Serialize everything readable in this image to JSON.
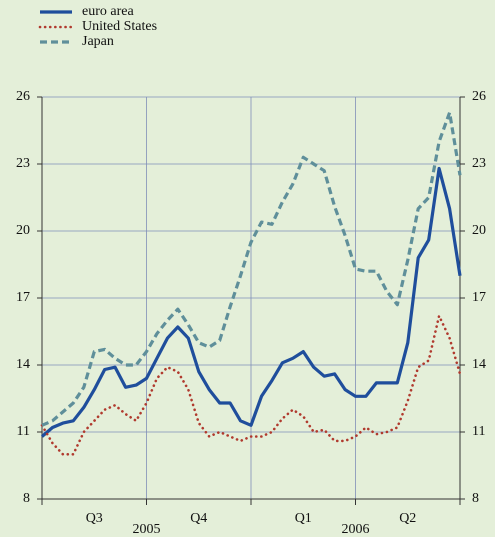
{
  "chart_data": {
    "type": "line",
    "x": [
      0,
      0.1,
      0.2,
      0.3,
      0.4,
      0.5,
      0.6,
      0.7,
      0.8,
      0.9,
      1,
      1.1,
      1.2,
      1.3,
      1.4,
      1.5,
      1.6,
      1.7,
      1.8,
      1.9,
      2,
      2.1,
      2.2,
      2.3,
      2.4,
      2.5,
      2.6,
      2.7,
      2.8,
      2.9,
      3,
      3.1,
      3.2,
      3.3,
      3.4,
      3.5,
      3.6,
      3.7,
      3.8,
      3.9,
      4
    ],
    "series": [
      {
        "name": "euro area",
        "color": "#1f4e9c",
        "style": "solid",
        "values": [
          10.8,
          11.2,
          11.4,
          11.5,
          12.1,
          12.9,
          13.8,
          13.9,
          13.0,
          13.1,
          13.4,
          14.3,
          15.2,
          15.7,
          15.2,
          13.7,
          12.9,
          12.3,
          12.3,
          11.5,
          11.3,
          12.6,
          13.3,
          14.1,
          14.3,
          14.6,
          13.9,
          13.5,
          13.6,
          12.9,
          12.6,
          12.6,
          13.2,
          13.2,
          13.2,
          15.0,
          18.8,
          19.6,
          22.8,
          21.0,
          18.0
        ]
      },
      {
        "name": "United States",
        "color": "#b03a2e",
        "style": "dotted",
        "values": [
          11.3,
          10.5,
          10.0,
          10.0,
          11.0,
          11.5,
          12.0,
          12.2,
          11.8,
          11.5,
          12.3,
          13.4,
          13.9,
          13.7,
          12.9,
          11.4,
          10.8,
          11.0,
          10.8,
          10.6,
          10.8,
          10.8,
          11.0,
          11.6,
          12.0,
          11.7,
          11.0,
          11.1,
          10.6,
          10.6,
          10.8,
          11.2,
          10.9,
          11.0,
          11.2,
          12.4,
          13.9,
          14.2,
          16.2,
          15.2,
          13.6
        ]
      },
      {
        "name": "Japan",
        "color": "#5f8f9a",
        "style": "dashed",
        "values": [
          11.3,
          11.5,
          11.9,
          12.3,
          13.0,
          14.6,
          14.7,
          14.3,
          14.0,
          14.0,
          14.6,
          15.4,
          16.0,
          16.5,
          15.8,
          15.0,
          14.8,
          15.1,
          16.6,
          18.0,
          19.5,
          20.4,
          20.3,
          21.3,
          22.1,
          23.3,
          23.0,
          22.7,
          21.1,
          19.8,
          18.3,
          18.2,
          18.2,
          17.3,
          16.7,
          18.7,
          21.0,
          21.5,
          24.0,
          25.3,
          22.5
        ]
      }
    ],
    "xlim": [
      0,
      4
    ],
    "xticks": [
      {
        "value": 0.5,
        "label": "Q3"
      },
      {
        "value": 1.5,
        "label": "Q4"
      },
      {
        "value": 2.5,
        "label": "Q1"
      },
      {
        "value": 3.5,
        "label": "Q2"
      }
    ],
    "x_groups": [
      {
        "value": 1,
        "label": "2005"
      },
      {
        "value": 3,
        "label": "2006"
      }
    ],
    "xgrid": [
      0,
      1,
      2,
      3,
      4
    ],
    "ylim": [
      8,
      26
    ],
    "yticks": [
      8,
      11,
      14,
      17,
      20,
      23,
      26
    ],
    "y2lim": [
      8,
      26
    ],
    "y2ticks": [
      8,
      11,
      14,
      17,
      20,
      23,
      26
    ],
    "grid": true
  }
}
